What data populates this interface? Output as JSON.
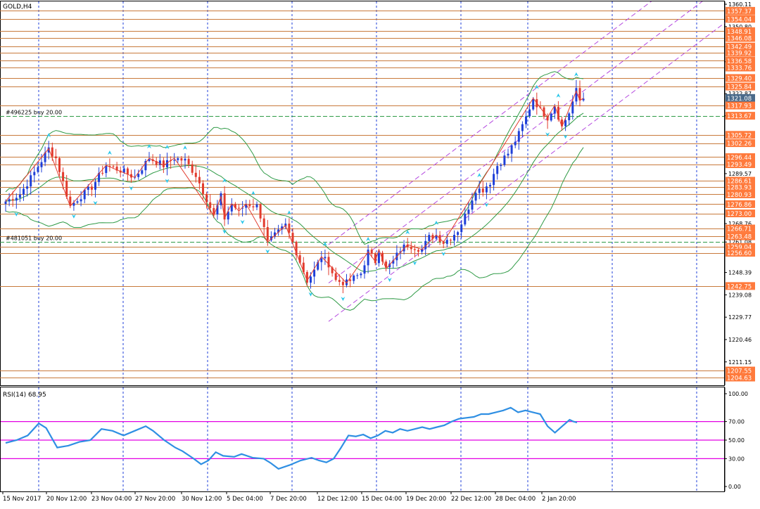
{
  "symbol_label": "GOLD,H4",
  "indicator_label": "RSI(14) 68.95",
  "colors": {
    "bull": "#1f3fd8",
    "bear": "#e23b2e",
    "level": "#c87a3c",
    "bollinger": "#2e9a45",
    "zigzag": "#e23b2e",
    "channel": "#b64de0",
    "grid": "#1f3fd8",
    "rsi": "#2f8fe3",
    "rsi_level": "#e300e3",
    "tag_bg": "#ff7a3c",
    "tag_bid": "#4a6a8a",
    "arrow": "#29c7ea",
    "order_line": "#2e9a45"
  },
  "price_tags": [
    "1357.37",
    "1354.04",
    "1348.91",
    "1346.08",
    "1342.49",
    "1339.92",
    "1336.58",
    "1333.76",
    "1329.40",
    "1325.84",
    "1321.08",
    "1317.93",
    "1313.67",
    "1305.72",
    "1302.26",
    "1296.44",
    "1293.49",
    "1286.61",
    "1283.93",
    "1280.93",
    "1276.86",
    "1273.00",
    "1266.71",
    "1263.48",
    "1259.04",
    "1256.60",
    "1242.75",
    "1207.55",
    "1204.63"
  ],
  "bid_tag": "1321.08",
  "axis_prices": [
    "1360.11",
    "1350.80",
    "1336.18",
    "1322.87",
    "1313.67",
    "1289.57",
    "1268.76",
    "1261.08",
    "1248.39",
    "1239.08",
    "1229.77",
    "1220.46",
    "1211.15"
  ],
  "orders": [
    {
      "label": "#496225 buy 20.00",
      "price": 1313.67
    },
    {
      "label": "#481051 buy 20.00",
      "price": 1261.08
    }
  ],
  "rsi_axis": [
    "100.00",
    "70.00",
    "50.00",
    "30.00",
    "0.00"
  ],
  "time_labels": [
    "15 Nov 2017",
    "20 Nov 12:00",
    "23 Nov 04:00",
    "27 Nov 20:00",
    "30 Nov 12:00",
    "5 Dec 04:00",
    "7 Dec 20:00",
    "12 Dec 12:00",
    "15 Dec 04:00",
    "19 Dec 20:00",
    "22 Dec 12:00",
    "28 Dec 04:00",
    "2 Jan 20:00"
  ],
  "chart_data": {
    "type": "candlestick",
    "symbol": "GOLD",
    "timeframe": "H4",
    "ylim": [
      1202,
      1361
    ],
    "horizontal_levels": [
      1357.37,
      1354.04,
      1348.91,
      1346.08,
      1342.49,
      1339.92,
      1336.58,
      1333.76,
      1329.4,
      1325.84,
      1317.93,
      1305.72,
      1302.26,
      1296.44,
      1293.49,
      1286.61,
      1283.93,
      1280.93,
      1276.86,
      1273.0,
      1266.71,
      1263.48,
      1259.04,
      1256.6,
      1242.75,
      1207.55,
      1204.63
    ],
    "close_path": [
      [
        0,
        1278
      ],
      [
        4,
        1281
      ],
      [
        8,
        1290
      ],
      [
        12,
        1300
      ],
      [
        14,
        1296
      ],
      [
        18,
        1276
      ],
      [
        20,
        1279
      ],
      [
        24,
        1284
      ],
      [
        28,
        1293
      ],
      [
        32,
        1291
      ],
      [
        36,
        1288
      ],
      [
        40,
        1296
      ],
      [
        44,
        1293
      ],
      [
        47,
        1296
      ],
      [
        50,
        1295
      ],
      [
        53,
        1289
      ],
      [
        56,
        1279
      ],
      [
        58,
        1272
      ],
      [
        60,
        1280
      ],
      [
        61,
        1271
      ],
      [
        63,
        1277
      ],
      [
        65,
        1274
      ],
      [
        67,
        1277
      ],
      [
        70,
        1276
      ],
      [
        72,
        1268
      ],
      [
        73,
        1261
      ],
      [
        76,
        1265
      ],
      [
        78,
        1268
      ],
      [
        80,
        1261
      ],
      [
        82,
        1253
      ],
      [
        84,
        1245
      ],
      [
        86,
        1249
      ],
      [
        88,
        1255
      ],
      [
        90,
        1252
      ],
      [
        92,
        1245
      ],
      [
        95,
        1244
      ],
      [
        97,
        1246
      ],
      [
        99,
        1248
      ],
      [
        101,
        1257
      ],
      [
        103,
        1253
      ],
      [
        104,
        1258
      ],
      [
        106,
        1250
      ],
      [
        108,
        1253
      ],
      [
        110,
        1258
      ],
      [
        112,
        1260
      ],
      [
        114,
        1259
      ],
      [
        116,
        1258
      ],
      [
        118,
        1263
      ],
      [
        120,
        1264
      ],
      [
        122,
        1261
      ],
      [
        124,
        1263
      ],
      [
        126,
        1266
      ],
      [
        128,
        1272
      ],
      [
        131,
        1283
      ],
      [
        133,
        1283
      ],
      [
        135,
        1286
      ],
      [
        137,
        1293
      ],
      [
        140,
        1298
      ],
      [
        143,
        1306
      ],
      [
        145,
        1313
      ],
      [
        147,
        1321
      ],
      [
        149,
        1316
      ],
      [
        151,
        1313
      ],
      [
        153,
        1318
      ],
      [
        155,
        1309
      ],
      [
        157,
        1315
      ],
      [
        159,
        1324
      ],
      [
        160,
        1320
      ],
      [
        161,
        1321
      ]
    ],
    "rsi": {
      "period": 14,
      "value": 68.95,
      "levels": [
        70,
        50,
        30
      ],
      "ylim": [
        0,
        100
      ],
      "values": [
        [
          0,
          47
        ],
        [
          3,
          50
        ],
        [
          6,
          55
        ],
        [
          9,
          68
        ],
        [
          11,
          63
        ],
        [
          14,
          42
        ],
        [
          17,
          44
        ],
        [
          20,
          48
        ],
        [
          23,
          50
        ],
        [
          26,
          62
        ],
        [
          29,
          60
        ],
        [
          32,
          55
        ],
        [
          35,
          60
        ],
        [
          38,
          65
        ],
        [
          40,
          60
        ],
        [
          43,
          50
        ],
        [
          46,
          42
        ],
        [
          48,
          38
        ],
        [
          51,
          30
        ],
        [
          53,
          24
        ],
        [
          55,
          28
        ],
        [
          57,
          37
        ],
        [
          59,
          33
        ],
        [
          62,
          32
        ],
        [
          64,
          35
        ],
        [
          67,
          31
        ],
        [
          70,
          30
        ],
        [
          72,
          25
        ],
        [
          74,
          19
        ],
        [
          77,
          23
        ],
        [
          80,
          28
        ],
        [
          83,
          31
        ],
        [
          85,
          28
        ],
        [
          87,
          26
        ],
        [
          89,
          30
        ],
        [
          91,
          42
        ],
        [
          93,
          55
        ],
        [
          95,
          54
        ],
        [
          97,
          56
        ],
        [
          99,
          52
        ],
        [
          101,
          55
        ],
        [
          103,
          60
        ],
        [
          105,
          58
        ],
        [
          107,
          62
        ],
        [
          109,
          60
        ],
        [
          111,
          62
        ],
        [
          113,
          64
        ],
        [
          115,
          62
        ],
        [
          117,
          64
        ],
        [
          119,
          66
        ],
        [
          121,
          70
        ],
        [
          123,
          73
        ],
        [
          125,
          74
        ],
        [
          127,
          75
        ],
        [
          129,
          78
        ],
        [
          131,
          78
        ],
        [
          133,
          80
        ],
        [
          135,
          82
        ],
        [
          137,
          85
        ],
        [
          139,
          80
        ],
        [
          141,
          82
        ],
        [
          143,
          80
        ],
        [
          145,
          78
        ],
        [
          147,
          65
        ],
        [
          149,
          58
        ],
        [
          151,
          65
        ],
        [
          153,
          72
        ],
        [
          154,
          70
        ],
        [
          155,
          69
        ]
      ]
    }
  }
}
